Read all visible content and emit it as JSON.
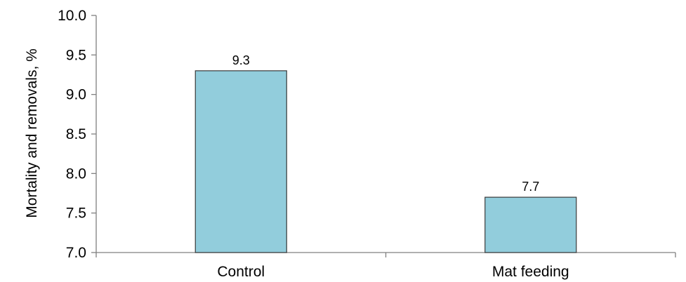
{
  "chart_data": {
    "type": "bar",
    "categories": [
      "Control",
      "Mat feeding"
    ],
    "values": [
      9.3,
      7.7
    ],
    "data_labels": [
      "9.3",
      "7.7"
    ],
    "title": "",
    "xlabel": "",
    "ylabel": "Mortality and removals, %",
    "ylim": [
      7.0,
      10.0
    ],
    "yticks": [
      7.0,
      7.5,
      8.0,
      8.5,
      9.0,
      9.5,
      10.0
    ],
    "ytick_labels": [
      "7.0",
      "7.5",
      "8.0",
      "8.5",
      "9.0",
      "9.5",
      "10.0"
    ],
    "grid": false,
    "legend": "none",
    "bar_color": "#92CDDC",
    "bar_edge_color": "#3a3a3a"
  }
}
